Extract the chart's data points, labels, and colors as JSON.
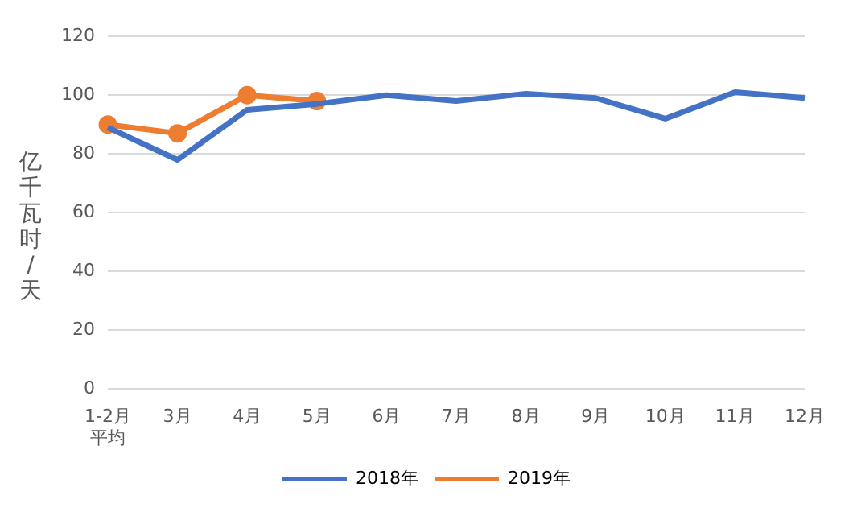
{
  "chart_data": {
    "type": "line",
    "ylabel": "亿千瓦时/天",
    "categories": [
      "1-2月平均",
      "3月",
      "4月",
      "5月",
      "6月",
      "7月",
      "8月",
      "9月",
      "10月",
      "11月",
      "12月"
    ],
    "series": [
      {
        "name": "2018年",
        "color": "#4472c4",
        "marker": "none",
        "values": [
          89,
          78,
          95,
          97,
          100,
          98,
          100.5,
          99,
          92,
          101,
          99
        ]
      },
      {
        "name": "2019年",
        "color": "#ed7d31",
        "marker": "circle",
        "values": [
          90,
          87,
          100,
          98,
          null,
          null,
          null,
          null,
          null,
          null,
          null
        ]
      }
    ],
    "ylim": [
      0,
      120
    ],
    "yticks": [
      0,
      20,
      40,
      60,
      80,
      100,
      120
    ],
    "grid": "y",
    "legend": "bottom",
    "line_style": "solid"
  }
}
